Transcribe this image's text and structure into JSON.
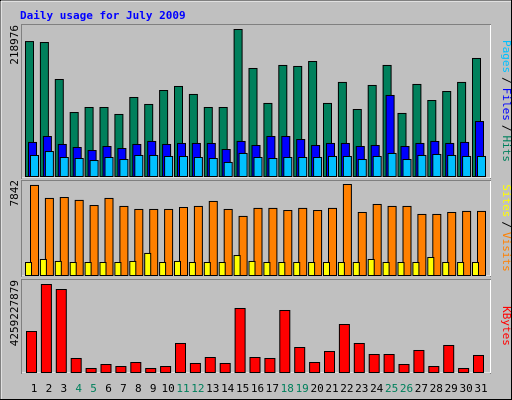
{
  "title": "Daily usage for July 2009",
  "chart_data": [
    {
      "type": "bar",
      "legend_separator": "/",
      "ylim": [
        0,
        218976
      ],
      "yticks": [
        218976
      ],
      "series": [
        {
          "name": "Hits",
          "color": "#00805c",
          "values": [
            201000,
            199600,
            144500,
            95300,
            102800,
            102800,
            92400,
            117700,
            107300,
            128100,
            134100,
            122200,
            102800,
            102800,
            218976,
            160900,
            108800,
            165400,
            163900,
            171300,
            108800,
            140100,
            99800,
            135600,
            165400,
            93900,
            137100,
            113200,
            126600,
            140100,
            175800
          ]
        },
        {
          "name": "Files",
          "color": "#0000ff",
          "values": [
            50700,
            59600,
            47700,
            43200,
            38700,
            44700,
            41700,
            47700,
            52200,
            47700,
            49200,
            49200,
            49200,
            40200,
            52200,
            46200,
            59600,
            59600,
            55100,
            46200,
            49200,
            49200,
            44700,
            46200,
            120700,
            44700,
            49200,
            52200,
            49200,
            50700,
            81900
          ]
        },
        {
          "name": "Pages",
          "color": "#00c0ff",
          "values": [
            31300,
            37200,
            28300,
            26800,
            23800,
            28300,
            25300,
            31300,
            31300,
            29800,
            29800,
            28300,
            26800,
            20900,
            34300,
            28300,
            26800,
            28300,
            28300,
            28300,
            29800,
            29800,
            25300,
            29800,
            34300,
            25300,
            31300,
            32800,
            31300,
            29800,
            29800
          ]
        }
      ]
    },
    {
      "type": "bar",
      "legend_separator": "/",
      "ylim": [
        0,
        7842
      ],
      "yticks": [
        7842
      ],
      "series": [
        {
          "name": "Visits",
          "color": "#ff8000",
          "values": [
            7760,
            6640,
            6720,
            6470,
            6030,
            6640,
            5950,
            5690,
            5690,
            5690,
            5860,
            5950,
            6380,
            5690,
            5090,
            5780,
            5780,
            5600,
            5780,
            5600,
            5780,
            7842,
            5430,
            6120,
            5950,
            5950,
            5260,
            5260,
            5430,
            5520,
            5520
          ]
        },
        {
          "name": "Sites",
          "color": "#ffff00",
          "values": [
            1120,
            1380,
            1210,
            1120,
            1120,
            1120,
            1120,
            1210,
            1900,
            1120,
            1210,
            1120,
            1120,
            1120,
            1720,
            1210,
            1120,
            1120,
            1120,
            1120,
            1120,
            1120,
            1120,
            1380,
            1120,
            1120,
            1120,
            1550,
            1120,
            1120,
            1120
          ]
        }
      ]
    },
    {
      "type": "bar",
      "ylim": [
        0,
        4259227879
      ],
      "yticks": [
        4259227879
      ],
      "categories": [
        "1",
        "2",
        "3",
        "4",
        "5",
        "6",
        "7",
        "8",
        "9",
        "10",
        "11",
        "12",
        "13",
        "14",
        "15",
        "16",
        "17",
        "18",
        "19",
        "20",
        "21",
        "22",
        "23",
        "24",
        "25",
        "26",
        "27",
        "28",
        "29",
        "30",
        "31"
      ],
      "highlight": [
        3,
        4,
        10,
        11,
        17,
        18,
        24,
        25
      ],
      "highlight_color": "#00805c",
      "series": [
        {
          "name": "KBytes",
          "color": "#ff0000",
          "values": [
            1984000000,
            4259227879,
            4017000000,
            678000000,
            194000000,
            387000000,
            290000000,
            484000000,
            194000000,
            290000000,
            1404000000,
            436000000,
            726000000,
            436000000,
            3098000000,
            726000000,
            678000000,
            3001000000,
            1210000000,
            484000000,
            1016000000,
            2323000000,
            1404000000,
            871000000,
            871000000,
            387000000,
            1065000000,
            290000000,
            1307000000,
            194000000,
            823000000
          ]
        }
      ]
    }
  ]
}
